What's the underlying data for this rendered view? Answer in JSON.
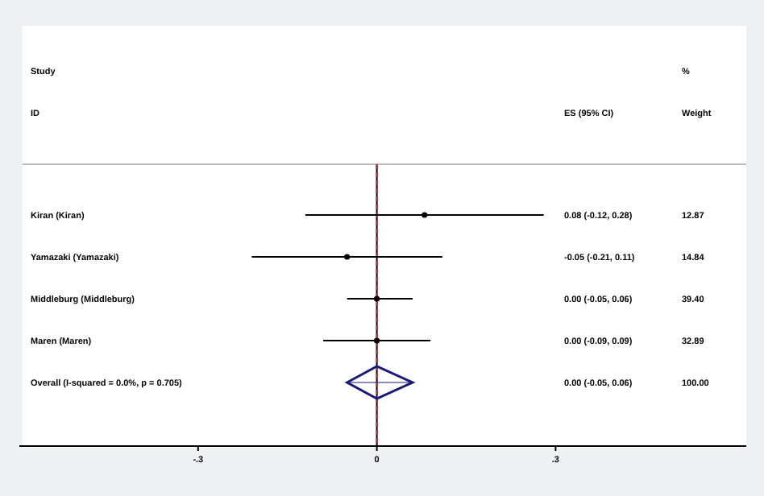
{
  "chart_data": {
    "type": "scatter",
    "orientation": "horizontal",
    "ylabel": "Study\nID",
    "categories": [
      "Kiran (Kiran)",
      "Yamazaki (Yamazaki)",
      "Middleburg (Middleburg)",
      "Maren (Maren)",
      "Overall (I-squared = 0.0%, p = 0.705)"
    ],
    "series": [
      {
        "color": "#000000",
        "marker": "circle",
        "values": [
          0.08,
          -0.05,
          0.0,
          0.0,
          null
        ],
        "errors": [
          [
            -0.12,
            0.28
          ],
          [
            -0.21,
            0.11
          ],
          [
            -0.05,
            0.06
          ],
          [
            -0.09,
            0.09
          ],
          null
        ]
      },
      {
        "color": "#1a1a7a",
        "marker": "diamond",
        "values": [
          null,
          null,
          null,
          null,
          0.0
        ],
        "errors": [
          null,
          null,
          null,
          null,
          [
            -0.05,
            0.06
          ]
        ]
      }
    ],
    "annotations": [
      "ES (95% CI)",
      "%\nWeight",
      "0.08 (-0.12, 0.28)",
      "-0.05 (-0.21, 0.11)",
      "0.00 (-0.05, 0.06)",
      "0.00 (-0.09, 0.09)",
      "0.00 (-0.05, 0.06)",
      "12.87",
      "14.84",
      "39.40",
      "32.89",
      "100.00"
    ],
    "xlim": [
      -0.6,
      0.62
    ],
    "xticks": [
      {
        "value": -0.3,
        "label": "-.3"
      },
      0,
      {
        "value": 0.3,
        "label": ".3"
      }
    ],
    "ref_lines": [
      {
        "axis": "x",
        "value": 0,
        "color": "#000000",
        "line_style": "solid"
      },
      {
        "axis": "x",
        "value": 0,
        "color": "#b03030",
        "line_style": "dashed"
      }
    ],
    "grid": false
  }
}
